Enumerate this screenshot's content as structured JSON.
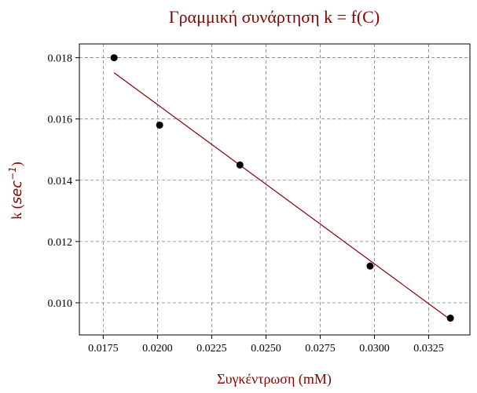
{
  "chart_data": {
    "type": "scatter",
    "title": "Γραμμική συνάρτηση k = f(C)",
    "xlabel": "Συγκέντρωση (mM)",
    "ylabel_prefix": "k (",
    "ylabel_unit_base": "sec",
    "ylabel_unit_exp": "−1",
    "ylabel_suffix": ")",
    "xlim": [
      0.0164,
      0.0344
    ],
    "ylim": [
      0.00895,
      0.01845
    ],
    "xticks": [
      0.0175,
      0.02,
      0.0225,
      0.025,
      0.0275,
      0.03,
      0.0325
    ],
    "xtick_labels": [
      "0.0175",
      "0.0200",
      "0.0225",
      "0.0250",
      "0.0275",
      "0.0300",
      "0.0325"
    ],
    "yticks": [
      0.01,
      0.012,
      0.014,
      0.016,
      0.018
    ],
    "ytick_labels": [
      "0.010",
      "0.012",
      "0.014",
      "0.016",
      "0.018"
    ],
    "grid": true,
    "points": [
      {
        "x": 0.018,
        "y": 0.018
      },
      {
        "x": 0.0201,
        "y": 0.0158
      },
      {
        "x": 0.0238,
        "y": 0.0145
      },
      {
        "x": 0.0298,
        "y": 0.0112
      },
      {
        "x": 0.0335,
        "y": 0.0095
      }
    ],
    "fit_line": [
      {
        "x": 0.018,
        "y": 0.01751
      },
      {
        "x": 0.0335,
        "y": 0.00945
      }
    ],
    "colors": {
      "points": "#000000",
      "fit_line": "#8b0000",
      "text": "#8b0000",
      "grid": "#808080"
    }
  }
}
